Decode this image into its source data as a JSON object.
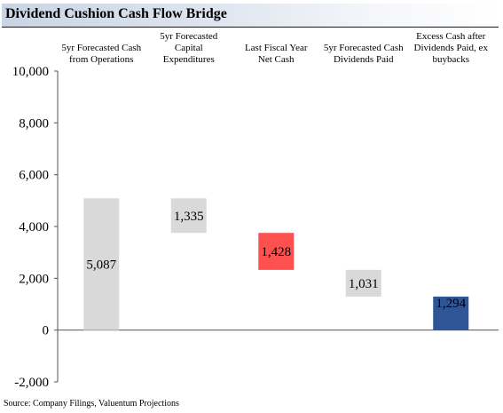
{
  "title": "Dividend Cushion Cash Flow Bridge",
  "source": "Source: Company Filings, Valuentum Projections",
  "colors": {
    "title_gradient_start": "#c9d4e4",
    "bar_gray": "#d9d9d9",
    "bar_red": "#ff5050",
    "bar_blue": "#2f5597"
  },
  "chart_data": {
    "type": "bar",
    "subtype": "waterfall",
    "categories": [
      [
        "5yr Forecasted Cash",
        "from Operations"
      ],
      [
        "5yr Forecasted",
        "Capital",
        "Expenditures"
      ],
      [
        "Last Fiscal Year",
        "Net Cash"
      ],
      [
        "5yr Forecasted Cash",
        "Dividends Paid"
      ],
      [
        "Excess Cash after",
        "Dividends Paid, ex",
        "buybacks"
      ]
    ],
    "bars": [
      {
        "base": 0,
        "top": 5087,
        "label": "5,087",
        "color": "#d9d9d9"
      },
      {
        "base": 3752,
        "top": 5087,
        "label": "1,335",
        "color": "#d9d9d9"
      },
      {
        "base": 2324,
        "top": 3752,
        "label": "1,428",
        "color": "#ff5050"
      },
      {
        "base": 1293,
        "top": 2324,
        "label": "1,031",
        "color": "#d9d9d9"
      },
      {
        "base": 0,
        "top": 1294,
        "label": "1,294",
        "color": "#2f5597"
      }
    ],
    "ylim": [
      -2000,
      10000
    ],
    "yticks": [
      10000,
      8000,
      6000,
      4000,
      2000,
      0,
      -2000
    ],
    "ytick_labels": [
      "10,000",
      "8,000",
      "6,000",
      "4,000",
      "2,000",
      "0",
      "-2,000"
    ],
    "grid": false,
    "legend": "none"
  }
}
